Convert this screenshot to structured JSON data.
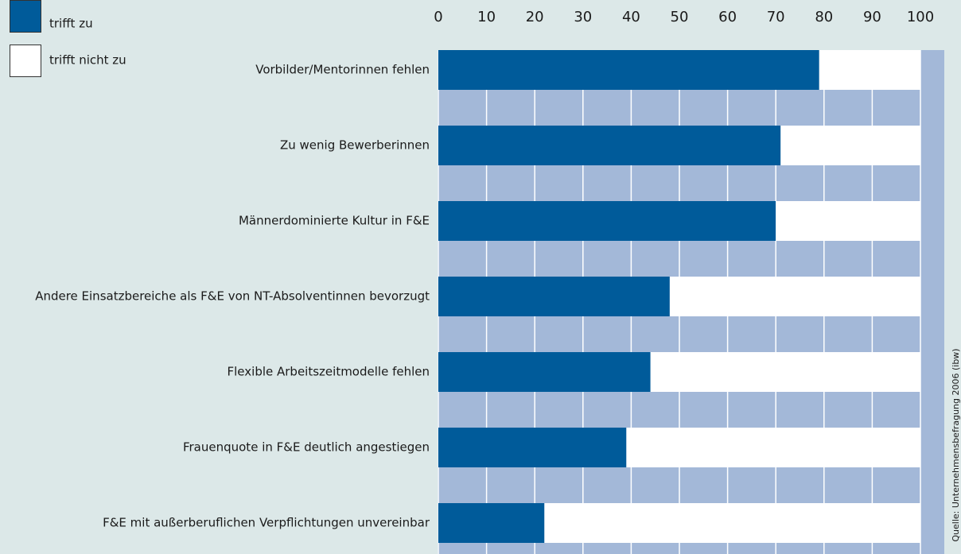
{
  "chart_data": {
    "type": "stacked-barh",
    "categories": [
      "Vorbilder/Mentorinnen fehlen",
      "Zu wenig Bewerberinnen",
      "Männerdominierte Kultur in F&E",
      "Andere Einsatzbereiche als F&E von NT-Absolventinnen bevorzugt",
      "Flexible Arbeitszeitmodelle fehlen",
      "Frauenquote in F&E deutlich angestiegen",
      "F&E mit außerberuflichen Verpflichtungen unvereinbar"
    ],
    "series": [
      {
        "name": "trifft zu",
        "color": "#005b9a",
        "values": [
          79,
          71,
          70,
          48,
          44,
          39,
          22
        ]
      },
      {
        "name": "trifft nicht zu",
        "color": "#ffffff",
        "values": [
          21,
          29,
          30,
          52,
          56,
          61,
          78
        ]
      }
    ],
    "xlim": [
      0,
      100
    ],
    "xticks": [
      0,
      10,
      20,
      30,
      40,
      50,
      60,
      70,
      80,
      90,
      100
    ],
    "grid": true,
    "legend": "top-left",
    "source": "Quelle: Unternehmensbefragung 2006 (ibw)"
  }
}
